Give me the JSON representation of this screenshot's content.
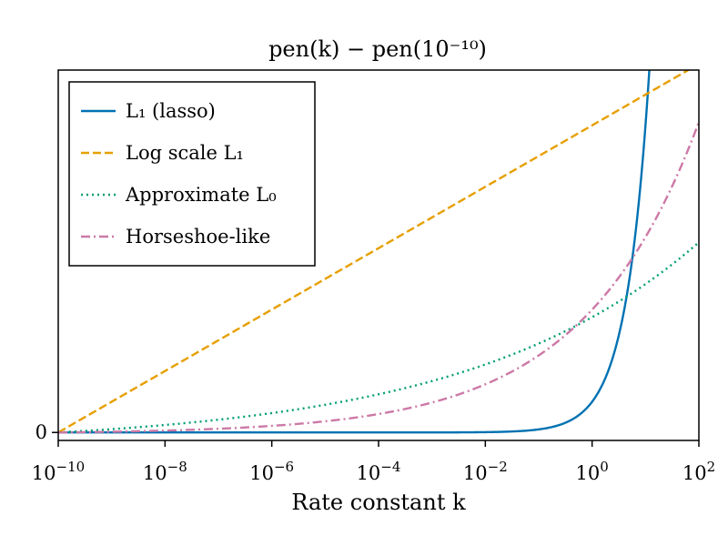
{
  "chart_data": {
    "type": "line",
    "title": "pen(k) − pen(10⁻¹⁰)",
    "xlabel": "Rate constant k",
    "ylabel": "",
    "xscale": "log",
    "xlim": [
      1e-10,
      100
    ],
    "ylim": [
      -0.26,
      11.8
    ],
    "x_ticks": [
      {
        "value": 1e-10,
        "base": "10",
        "exp": "−10"
      },
      {
        "value": 1e-08,
        "base": "10",
        "exp": "−8"
      },
      {
        "value": 1e-06,
        "base": "10",
        "exp": "−6"
      },
      {
        "value": 0.0001,
        "base": "10",
        "exp": "−4"
      },
      {
        "value": 0.01,
        "base": "10",
        "exp": "−2"
      },
      {
        "value": 1,
        "base": "10",
        "exp": "0"
      },
      {
        "value": 100,
        "base": "10",
        "exp": "2"
      }
    ],
    "y_ticks": [
      {
        "value": 0,
        "label": "0"
      }
    ],
    "grid": false,
    "legend_position": "top-left",
    "series": [
      {
        "name": "L₁ (lasso)",
        "color": "#0072b2",
        "style": "solid",
        "formula": "k - 1e-10"
      },
      {
        "name": "Log scale L₁",
        "color": "#e69f00",
        "style": "dashed",
        "formula": "log10(k) + 10"
      },
      {
        "name": "Approximate L₀",
        "color": "#009e73",
        "style": "dotted",
        "formula": "(k^0.1 - 1e-1) * 4.17"
      },
      {
        "name": "Horseshoe-like",
        "color": "#cc79a7",
        "style": "dashdot",
        "formula": "(k^0.2 - 1e-2) * 4.04"
      }
    ]
  }
}
